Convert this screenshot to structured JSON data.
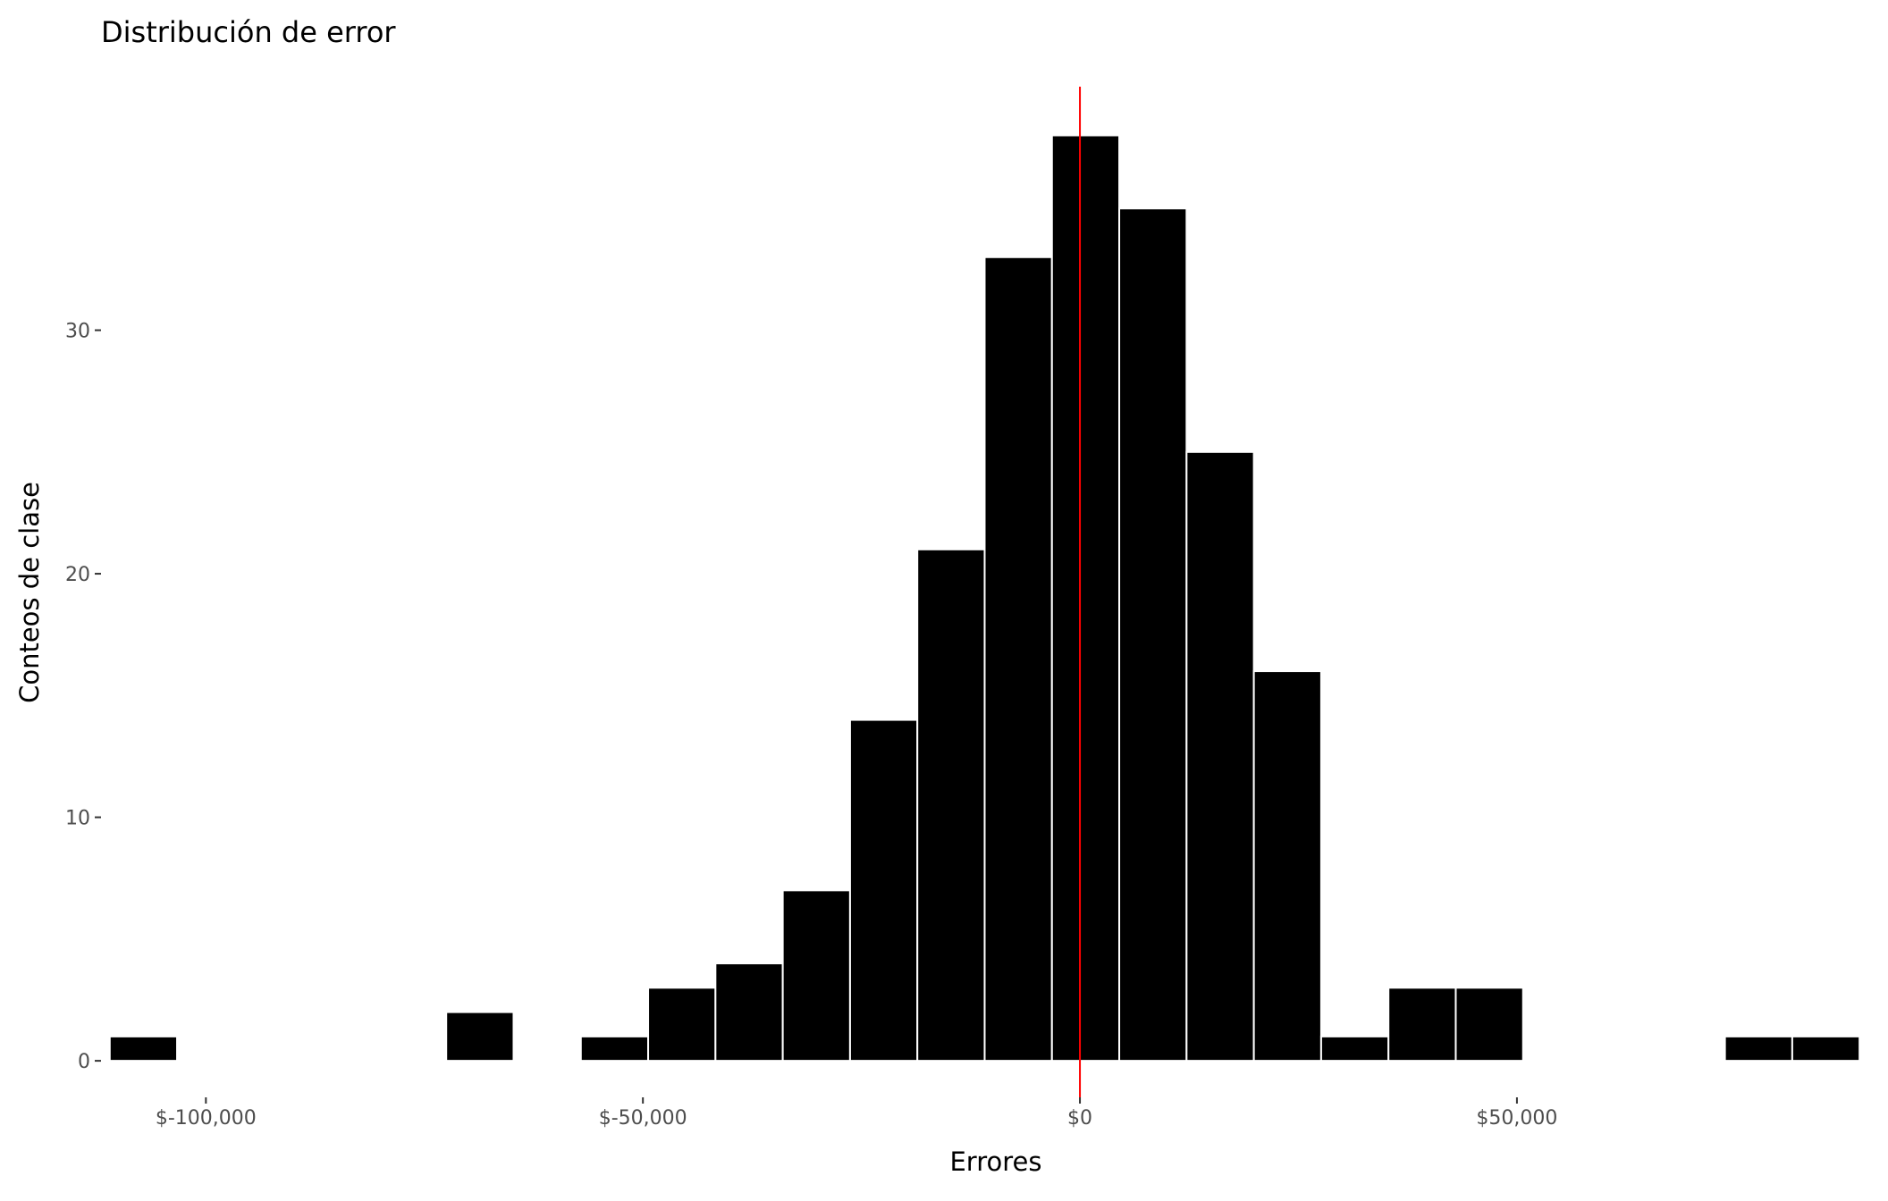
{
  "chart_data": {
    "type": "bar",
    "title": "Distribución de error",
    "xlabel": "Errores",
    "ylabel": "Conteos de clase",
    "xlim": [
      -112000,
      90000
    ],
    "ylim": [
      -1.5,
      40
    ],
    "bin_width": 7700,
    "bins": [
      {
        "start": -111000,
        "end": -103300,
        "count": 1
      },
      {
        "start": -72500,
        "end": -64800,
        "count": 2
      },
      {
        "start": -57100,
        "end": -49400,
        "count": 1
      },
      {
        "start": -49400,
        "end": -41700,
        "count": 3
      },
      {
        "start": -41700,
        "end": -34000,
        "count": 4
      },
      {
        "start": -34000,
        "end": -26300,
        "count": 7
      },
      {
        "start": -26300,
        "end": -18600,
        "count": 14
      },
      {
        "start": -18600,
        "end": -10900,
        "count": 21
      },
      {
        "start": -10900,
        "end": -3200,
        "count": 33
      },
      {
        "start": -3200,
        "end": 4500,
        "count": 38
      },
      {
        "start": 4500,
        "end": 12200,
        "count": 35
      },
      {
        "start": 12200,
        "end": 19900,
        "count": 25
      },
      {
        "start": 19900,
        "end": 27600,
        "count": 16
      },
      {
        "start": 27600,
        "end": 35300,
        "count": 1
      },
      {
        "start": 35300,
        "end": 43000,
        "count": 3
      },
      {
        "start": 43000,
        "end": 50700,
        "count": 3
      },
      {
        "start": 73800,
        "end": 81500,
        "count": 1
      },
      {
        "start": 81500,
        "end": 89200,
        "count": 1
      }
    ],
    "x_ticks": [
      {
        "value": -100000,
        "label": "$-100,000"
      },
      {
        "value": -50000,
        "label": "$-50,000"
      },
      {
        "value": 0,
        "label": "$0"
      },
      {
        "value": 50000,
        "label": "$50,000"
      }
    ],
    "y_ticks": [
      {
        "value": 0,
        "label": "0"
      },
      {
        "value": 10,
        "label": "10"
      },
      {
        "value": 20,
        "label": "20"
      },
      {
        "value": 30,
        "label": "30"
      }
    ],
    "vline": {
      "x": 0,
      "color": "#ff0000"
    },
    "bar_color": "#000000",
    "bar_edge_color": "#ffffff",
    "grid": false,
    "legend": "none"
  }
}
